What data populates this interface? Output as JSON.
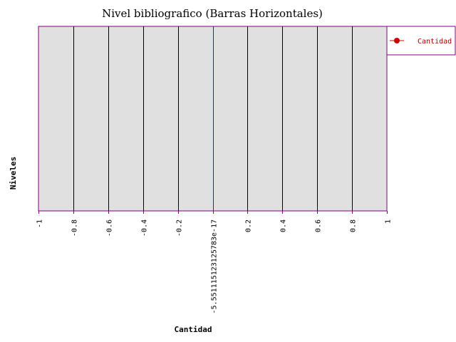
{
  "chart_data": {
    "type": "bar",
    "orientation": "horizontal",
    "title": "Nivel bibliografico (Barras Horizontales)",
    "xlabel": "Cantidad",
    "ylabel": "Niveles",
    "xlim": [
      -1,
      1
    ],
    "x_ticks": [
      -1,
      -0.8,
      -0.6,
      -0.4,
      -0.2,
      0,
      0.2,
      0.4,
      0.6,
      0.8,
      1
    ],
    "x_tick_labels": [
      "-1",
      "-0.8",
      "-0.6",
      "-0.4",
      "-0.2",
      "-5.551115123125783e-17",
      "0.2",
      "0.4",
      "0.6",
      "0.8",
      "1"
    ],
    "categories": [],
    "series": [
      {
        "name": "Cantidad",
        "values": [],
        "color": "#cc0000"
      }
    ],
    "grid": true,
    "legend_position": "top-right",
    "colors": {
      "plot_background": "#e0e0e0",
      "plot_border": "#800080",
      "gridline": "#000000",
      "zero_line": "#800080",
      "legend_marker": "#cc0000",
      "legend_text": "#b00000"
    }
  }
}
